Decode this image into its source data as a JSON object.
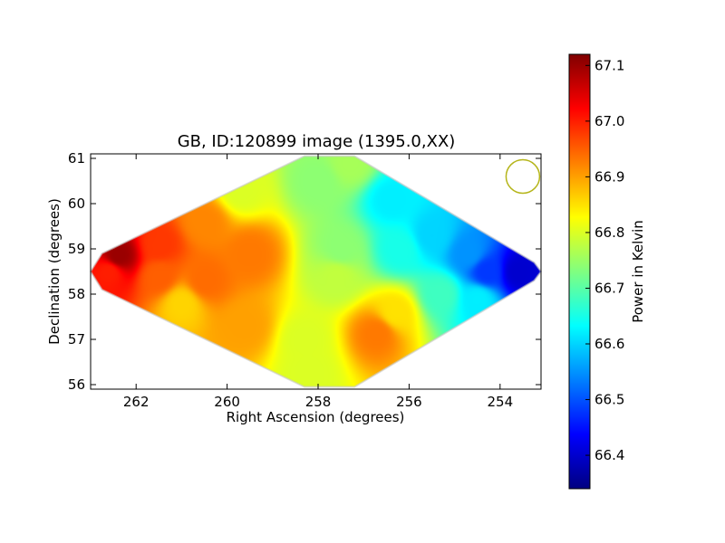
{
  "chart_data": {
    "type": "heatmap",
    "title": "GB, ID:120899 image (1395.0,XX)",
    "xlabel": "Right Ascension (degrees)",
    "ylabel": "Declination (degrees)",
    "xlim": [
      263.0,
      253.1
    ],
    "ylim": [
      55.9,
      61.1
    ],
    "xticks": [
      262,
      260,
      258,
      256,
      254
    ],
    "yticks": [
      56,
      57,
      58,
      59,
      60,
      61
    ],
    "colorbar": {
      "label": "Power in Kelvin",
      "range": [
        66.34,
        67.12
      ],
      "ticks": [
        66.4,
        66.5,
        66.6,
        66.7,
        66.8,
        66.9,
        67.0,
        67.1
      ],
      "colormap": "jet"
    },
    "map_outline": [
      [
        263.0,
        58.5
      ],
      [
        262.75,
        58.9
      ],
      [
        258.3,
        61.05
      ],
      [
        257.2,
        61.05
      ],
      [
        253.25,
        58.7
      ],
      [
        253.1,
        58.5
      ],
      [
        253.25,
        58.3
      ],
      [
        257.2,
        55.95
      ],
      [
        258.3,
        55.95
      ],
      [
        262.75,
        58.1
      ]
    ],
    "beam": {
      "ra": 253.5,
      "dec": 60.6,
      "radius_deg": 0.37,
      "color": "#b5b51a"
    },
    "samples": [
      {
        "ra": 262.4,
        "dec": 58.85,
        "power": 67.1
      },
      {
        "ra": 262.6,
        "dec": 58.5,
        "power": 67.0
      },
      {
        "ra": 261.5,
        "dec": 59.1,
        "power": 66.98
      },
      {
        "ra": 261.5,
        "dec": 58.4,
        "power": 66.95
      },
      {
        "ra": 260.5,
        "dec": 58.3,
        "power": 66.94
      },
      {
        "ra": 260.5,
        "dec": 59.6,
        "power": 66.92
      },
      {
        "ra": 259.5,
        "dec": 58.9,
        "power": 66.93
      },
      {
        "ra": 259.6,
        "dec": 57.3,
        "power": 66.9
      },
      {
        "ra": 261.0,
        "dec": 57.8,
        "power": 66.86
      },
      {
        "ra": 259.7,
        "dec": 60.3,
        "power": 66.8
      },
      {
        "ra": 258.3,
        "dec": 57.0,
        "power": 66.8
      },
      {
        "ra": 258.2,
        "dec": 56.3,
        "power": 66.8
      },
      {
        "ra": 258.0,
        "dec": 60.5,
        "power": 66.74
      },
      {
        "ra": 257.5,
        "dec": 59.0,
        "power": 66.74
      },
      {
        "ra": 257.6,
        "dec": 58.4,
        "power": 66.78
      },
      {
        "ra": 256.7,
        "dec": 57.15,
        "power": 66.93
      },
      {
        "ra": 256.3,
        "dec": 57.6,
        "power": 66.85
      },
      {
        "ra": 256.2,
        "dec": 59.0,
        "power": 66.65
      },
      {
        "ra": 256.4,
        "dec": 60.1,
        "power": 66.62
      },
      {
        "ra": 255.5,
        "dec": 59.3,
        "power": 66.6
      },
      {
        "ra": 255.3,
        "dec": 58.0,
        "power": 66.68
      },
      {
        "ra": 254.7,
        "dec": 58.9,
        "power": 66.55
      },
      {
        "ra": 254.3,
        "dec": 58.5,
        "power": 66.48
      },
      {
        "ra": 253.6,
        "dec": 58.5,
        "power": 66.4
      },
      {
        "ra": 254.5,
        "dec": 57.9,
        "power": 66.62
      },
      {
        "ra": 257.3,
        "dec": 60.9,
        "power": 66.76
      }
    ]
  }
}
